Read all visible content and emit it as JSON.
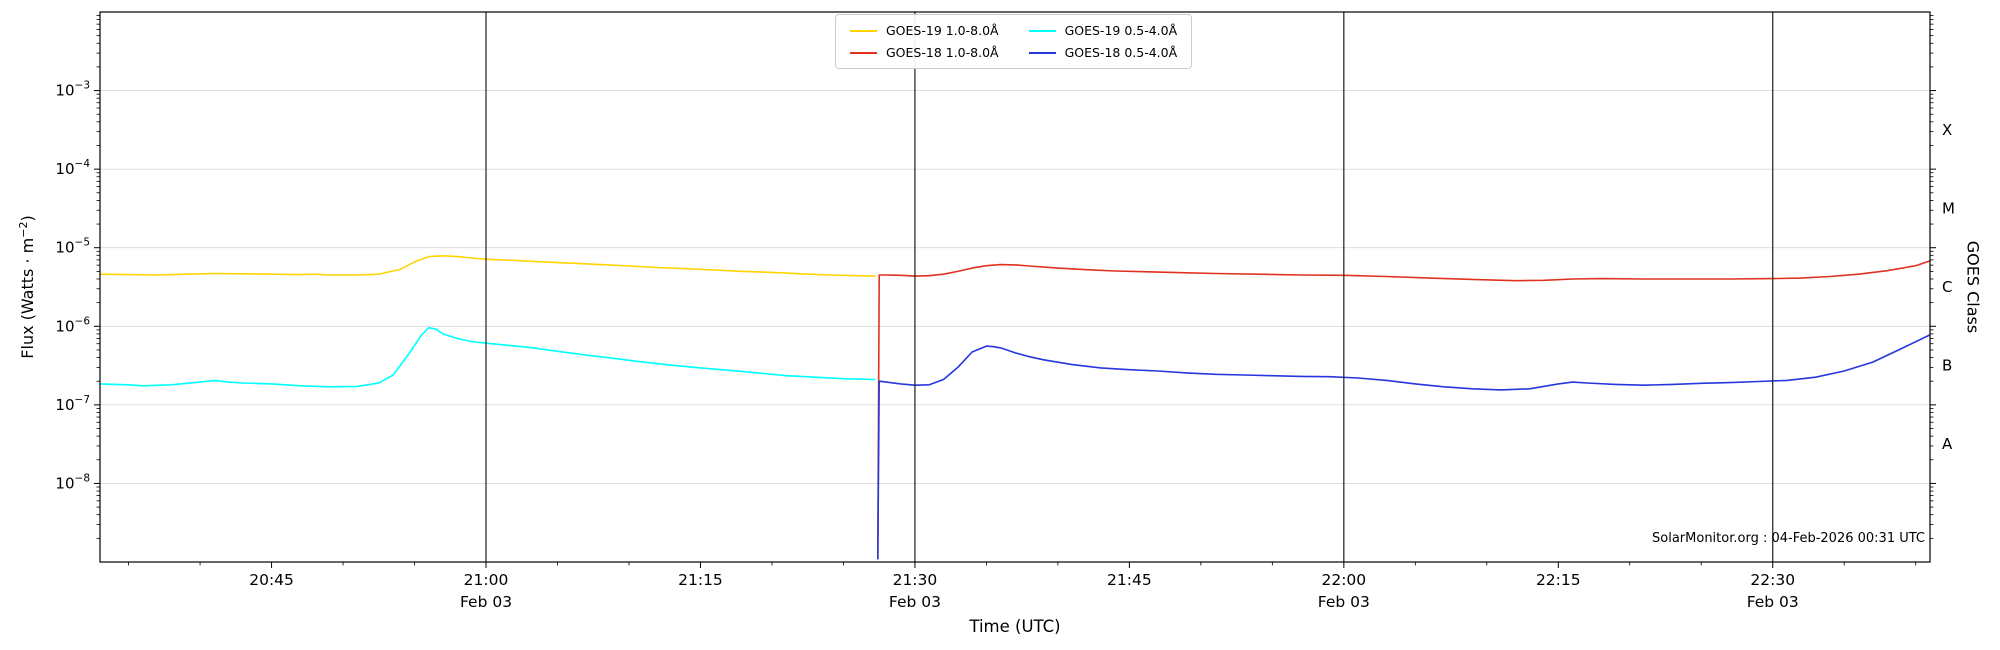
{
  "chart_data": {
    "type": "line",
    "title": "",
    "xlabel": "Time (UTC)",
    "ylabel_pre": "Flux (Watts · m",
    "ylabel_sup": "−2",
    "ylabel_post": ")",
    "ylabel_right": "GOES Class",
    "watermark": "SolarMonitor.org : 04-Feb-2026 00:31 UTC",
    "legend_position": "top-center",
    "grid": "horizontal-decades",
    "xlim": [
      0,
      128
    ],
    "ylim_log10": [
      -9,
      -2
    ],
    "x_unit": "minutes",
    "x_ticks": [
      {
        "t": 12,
        "label": "20:45"
      },
      {
        "t": 27,
        "label": "21:00",
        "sub": "Feb 03"
      },
      {
        "t": 42,
        "label": "21:15"
      },
      {
        "t": 57,
        "label": "21:30",
        "sub": "Feb 03"
      },
      {
        "t": 72,
        "label": "21:45"
      },
      {
        "t": 87,
        "label": "22:00",
        "sub": "Feb 03"
      },
      {
        "t": 102,
        "label": "22:15"
      },
      {
        "t": 117,
        "label": "22:30",
        "sub": "Feb 03"
      }
    ],
    "x_minor_ticks": [
      2,
      7,
      17,
      22,
      32,
      37,
      47,
      52,
      62,
      67,
      77,
      82,
      92,
      97,
      107,
      112,
      122,
      127
    ],
    "y_ticks_exponents": [
      -3,
      -4,
      -5,
      -6,
      -7,
      -8
    ],
    "goes_class_ticks": [
      {
        "label": "X",
        "log10": -3.5
      },
      {
        "label": "M",
        "log10": -4.5
      },
      {
        "label": "C",
        "log10": -5.5
      },
      {
        "label": "B",
        "log10": -6.5
      },
      {
        "label": "A",
        "log10": -7.5
      }
    ],
    "style": {
      "grid_color": "#d9d9d9",
      "divider_color": "#1f1f1f",
      "frame_color": "#000000"
    },
    "series": [
      {
        "name": "GOES-19 1.0-8.0Å",
        "color": "#ffd400",
        "points": [
          [
            0,
            4.6e-06
          ],
          [
            2,
            4.55e-06
          ],
          [
            4,
            4.5e-06
          ],
          [
            6,
            4.6e-06
          ],
          [
            8,
            4.7e-06
          ],
          [
            10,
            4.65e-06
          ],
          [
            12,
            4.6e-06
          ],
          [
            14,
            4.55e-06
          ],
          [
            15,
            4.6e-06
          ],
          [
            16,
            4.5e-06
          ],
          [
            18,
            4.5e-06
          ],
          [
            19.5,
            4.6e-06
          ],
          [
            21,
            5.3e-06
          ],
          [
            22,
            6.6e-06
          ],
          [
            23,
            7.7e-06
          ],
          [
            24,
            7.9e-06
          ],
          [
            25,
            7.7e-06
          ],
          [
            26,
            7.4e-06
          ],
          [
            27,
            7.15e-06
          ],
          [
            29,
            6.9e-06
          ],
          [
            31,
            6.6e-06
          ],
          [
            33,
            6.35e-06
          ],
          [
            35,
            6.1e-06
          ],
          [
            37,
            5.85e-06
          ],
          [
            39,
            5.6e-06
          ],
          [
            41,
            5.4e-06
          ],
          [
            43,
            5.2e-06
          ],
          [
            45,
            5e-06
          ],
          [
            47,
            4.85e-06
          ],
          [
            49,
            4.65e-06
          ],
          [
            51,
            4.5e-06
          ],
          [
            53,
            4.4e-06
          ],
          [
            54.2,
            4.35e-06
          ]
        ]
      },
      {
        "name": "GOES-18 1.0-8.0Å",
        "color": "#e03220",
        "points": [
          [
            54.4,
            1.1e-09
          ],
          [
            54.5,
            4.5e-06
          ],
          [
            55,
            4.5e-06
          ],
          [
            56,
            4.45e-06
          ],
          [
            57,
            4.35e-06
          ],
          [
            58,
            4.4e-06
          ],
          [
            59,
            4.6e-06
          ],
          [
            60,
            5e-06
          ],
          [
            61,
            5.5e-06
          ],
          [
            62,
            5.9e-06
          ],
          [
            63,
            6.1e-06
          ],
          [
            64,
            6.05e-06
          ],
          [
            65,
            5.85e-06
          ],
          [
            67,
            5.5e-06
          ],
          [
            69,
            5.25e-06
          ],
          [
            71,
            5.05e-06
          ],
          [
            73,
            4.95e-06
          ],
          [
            75,
            4.85e-06
          ],
          [
            78,
            4.7e-06
          ],
          [
            81,
            4.6e-06
          ],
          [
            84,
            4.5e-06
          ],
          [
            87,
            4.45e-06
          ],
          [
            90,
            4.3e-06
          ],
          [
            93,
            4.1e-06
          ],
          [
            96,
            3.95e-06
          ],
          [
            99,
            3.8e-06
          ],
          [
            101,
            3.85e-06
          ],
          [
            103,
            4e-06
          ],
          [
            105,
            4.05e-06
          ],
          [
            108,
            4e-06
          ],
          [
            111,
            4e-06
          ],
          [
            114,
            4e-06
          ],
          [
            117,
            4.05e-06
          ],
          [
            119,
            4.1e-06
          ],
          [
            121,
            4.3e-06
          ],
          [
            123,
            4.6e-06
          ],
          [
            125,
            5.1e-06
          ],
          [
            127,
            5.9e-06
          ],
          [
            128,
            6.8e-06
          ]
        ]
      },
      {
        "name": "GOES-19 0.5-4.0Å",
        "color": "#00ffff",
        "points": [
          [
            0,
            1.85e-07
          ],
          [
            2,
            1.8e-07
          ],
          [
            3,
            1.75e-07
          ],
          [
            5,
            1.8e-07
          ],
          [
            7,
            1.95e-07
          ],
          [
            8,
            2.05e-07
          ],
          [
            9,
            1.95e-07
          ],
          [
            10,
            1.9e-07
          ],
          [
            12,
            1.85e-07
          ],
          [
            14,
            1.75e-07
          ],
          [
            16,
            1.7e-07
          ],
          [
            18,
            1.72e-07
          ],
          [
            19.5,
            1.9e-07
          ],
          [
            20.5,
            2.4e-07
          ],
          [
            21.5,
            4.2e-07
          ],
          [
            22.5,
            7.8e-07
          ],
          [
            23,
            9.6e-07
          ],
          [
            23.5,
            9.2e-07
          ],
          [
            24,
            8e-07
          ],
          [
            25,
            7e-07
          ],
          [
            26,
            6.4e-07
          ],
          [
            27,
            6.1e-07
          ],
          [
            28,
            5.85e-07
          ],
          [
            30,
            5.4e-07
          ],
          [
            32,
            4.8e-07
          ],
          [
            34,
            4.3e-07
          ],
          [
            36,
            3.9e-07
          ],
          [
            38,
            3.5e-07
          ],
          [
            40,
            3.2e-07
          ],
          [
            42,
            2.95e-07
          ],
          [
            44,
            2.75e-07
          ],
          [
            46,
            2.55e-07
          ],
          [
            48,
            2.35e-07
          ],
          [
            50,
            2.25e-07
          ],
          [
            52,
            2.15e-07
          ],
          [
            54.2,
            2.1e-07
          ]
        ]
      },
      {
        "name": "GOES-18 0.5-4.0Å",
        "color": "#2637dd",
        "points": [
          [
            54.4,
            1.1e-09
          ],
          [
            54.5,
            2e-07
          ],
          [
            55,
            1.95e-07
          ],
          [
            56,
            1.85e-07
          ],
          [
            57,
            1.78e-07
          ],
          [
            58,
            1.8e-07
          ],
          [
            59,
            2.1e-07
          ],
          [
            60,
            3e-07
          ],
          [
            61,
            4.7e-07
          ],
          [
            62,
            5.6e-07
          ],
          [
            62.5,
            5.5e-07
          ],
          [
            63,
            5.3e-07
          ],
          [
            64,
            4.6e-07
          ],
          [
            65,
            4.1e-07
          ],
          [
            66,
            3.75e-07
          ],
          [
            68,
            3.25e-07
          ],
          [
            70,
            2.95e-07
          ],
          [
            72,
            2.8e-07
          ],
          [
            74,
            2.7e-07
          ],
          [
            76,
            2.55e-07
          ],
          [
            78,
            2.45e-07
          ],
          [
            80,
            2.4e-07
          ],
          [
            82,
            2.35e-07
          ],
          [
            84,
            2.3e-07
          ],
          [
            86,
            2.28e-07
          ],
          [
            88,
            2.2e-07
          ],
          [
            90,
            2.05e-07
          ],
          [
            92,
            1.85e-07
          ],
          [
            94,
            1.7e-07
          ],
          [
            96,
            1.6e-07
          ],
          [
            98,
            1.55e-07
          ],
          [
            100,
            1.6e-07
          ],
          [
            102,
            1.85e-07
          ],
          [
            103,
            1.95e-07
          ],
          [
            104,
            1.9e-07
          ],
          [
            106,
            1.82e-07
          ],
          [
            108,
            1.78e-07
          ],
          [
            110,
            1.82e-07
          ],
          [
            112,
            1.88e-07
          ],
          [
            114,
            1.92e-07
          ],
          [
            116,
            1.98e-07
          ],
          [
            118,
            2.05e-07
          ],
          [
            120,
            2.25e-07
          ],
          [
            122,
            2.7e-07
          ],
          [
            124,
            3.5e-07
          ],
          [
            126,
            5.2e-07
          ],
          [
            128,
            7.8e-07
          ]
        ]
      }
    ]
  }
}
